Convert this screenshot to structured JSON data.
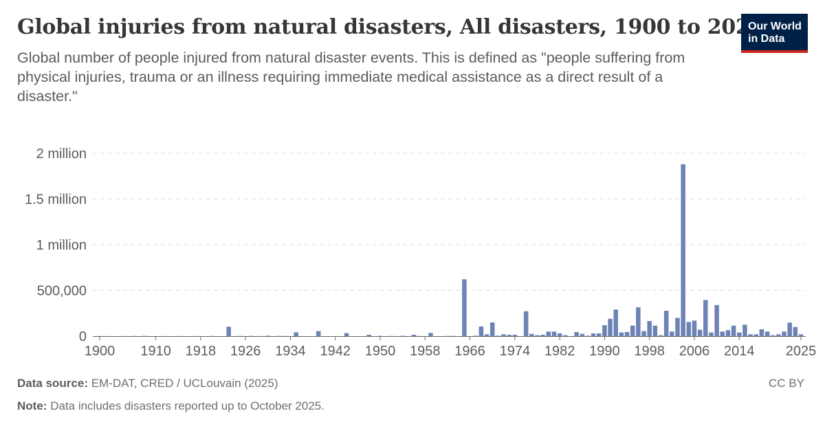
{
  "header": {
    "title": "Global injuries from natural disasters, All disasters, 1900 to 2025",
    "subtitle": "Global number of people injured from natural disaster events. This is defined as \"people suffering from physical injuries, trauma or an illness requiring immediate medical assistance as a direct result of a disaster.\"",
    "logo_line1": "Our World",
    "logo_line2": "in Data"
  },
  "footer": {
    "source_label": "Data source:",
    "source_text": "EM-DAT, CRED / UCLouvain (2025)",
    "note_label": "Note:",
    "note_text": "Data includes disasters reported up to October 2025.",
    "license": "CC BY"
  },
  "colors": {
    "bar": "#6d83b5",
    "grid": "#dddddd",
    "axis": "#666666",
    "logo_bg": "#002147",
    "logo_accent": "#ce261e"
  },
  "chart_data": {
    "type": "bar",
    "xlim": [
      1900,
      2025
    ],
    "ylim": [
      0,
      2000000
    ],
    "yticks": [
      {
        "value": 0,
        "label": "0"
      },
      {
        "value": 500000,
        "label": "500,000"
      },
      {
        "value": 1000000,
        "label": "1 million"
      },
      {
        "value": 1500000,
        "label": "1.5 million"
      },
      {
        "value": 2000000,
        "label": "2 million"
      }
    ],
    "xticks": [
      1900,
      1910,
      1918,
      1926,
      1934,
      1942,
      1950,
      1958,
      1966,
      1974,
      1982,
      1990,
      1998,
      2006,
      2014,
      2025
    ],
    "grid": "horizontal dashed",
    "series": [
      {
        "values": [
          [
            1900,
            1000
          ],
          [
            1902,
            1000
          ],
          [
            1904,
            1000
          ],
          [
            1906,
            2000
          ],
          [
            1908,
            3000
          ],
          [
            1911,
            1000
          ],
          [
            1914,
            1000
          ],
          [
            1917,
            1000
          ],
          [
            1920,
            2000
          ],
          [
            1923,
            103000
          ],
          [
            1925,
            2000
          ],
          [
            1927,
            3000
          ],
          [
            1929,
            1000
          ],
          [
            1930,
            5000
          ],
          [
            1932,
            3000
          ],
          [
            1933,
            2000
          ],
          [
            1935,
            42000
          ],
          [
            1939,
            55000
          ],
          [
            1944,
            33000
          ],
          [
            1948,
            15000
          ],
          [
            1950,
            3000
          ],
          [
            1952,
            2000
          ],
          [
            1954,
            4000
          ],
          [
            1956,
            15000
          ],
          [
            1957,
            2000
          ],
          [
            1959,
            35000
          ],
          [
            1962,
            2000
          ],
          [
            1963,
            3000
          ],
          [
            1965,
            622000
          ],
          [
            1967,
            5000
          ],
          [
            1968,
            105000
          ],
          [
            1969,
            20000
          ],
          [
            1970,
            150000
          ],
          [
            1971,
            5000
          ],
          [
            1972,
            20000
          ],
          [
            1973,
            15000
          ],
          [
            1974,
            15000
          ],
          [
            1976,
            272000
          ],
          [
            1977,
            25000
          ],
          [
            1978,
            10000
          ],
          [
            1979,
            15000
          ],
          [
            1980,
            50000
          ],
          [
            1981,
            50000
          ],
          [
            1982,
            30000
          ],
          [
            1983,
            10000
          ],
          [
            1985,
            45000
          ],
          [
            1986,
            25000
          ],
          [
            1987,
            5000
          ],
          [
            1988,
            30000
          ],
          [
            1989,
            30000
          ],
          [
            1990,
            120000
          ],
          [
            1991,
            190000
          ],
          [
            1992,
            290000
          ],
          [
            1993,
            40000
          ],
          [
            1994,
            45000
          ],
          [
            1995,
            115000
          ],
          [
            1996,
            315000
          ],
          [
            1997,
            55000
          ],
          [
            1998,
            165000
          ],
          [
            1999,
            115000
          ],
          [
            2000,
            10000
          ],
          [
            2001,
            278000
          ],
          [
            2002,
            50000
          ],
          [
            2003,
            200000
          ],
          [
            2004,
            1880000
          ],
          [
            2005,
            155000
          ],
          [
            2006,
            170000
          ],
          [
            2007,
            70000
          ],
          [
            2008,
            395000
          ],
          [
            2009,
            40000
          ],
          [
            2010,
            340000
          ],
          [
            2011,
            50000
          ],
          [
            2012,
            65000
          ],
          [
            2013,
            115000
          ],
          [
            2014,
            40000
          ],
          [
            2015,
            125000
          ],
          [
            2016,
            20000
          ],
          [
            2017,
            20000
          ],
          [
            2018,
            75000
          ],
          [
            2019,
            50000
          ],
          [
            2020,
            10000
          ],
          [
            2021,
            20000
          ],
          [
            2022,
            50000
          ],
          [
            2023,
            148000
          ],
          [
            2024,
            100000
          ],
          [
            2025,
            20000
          ]
        ]
      }
    ]
  }
}
